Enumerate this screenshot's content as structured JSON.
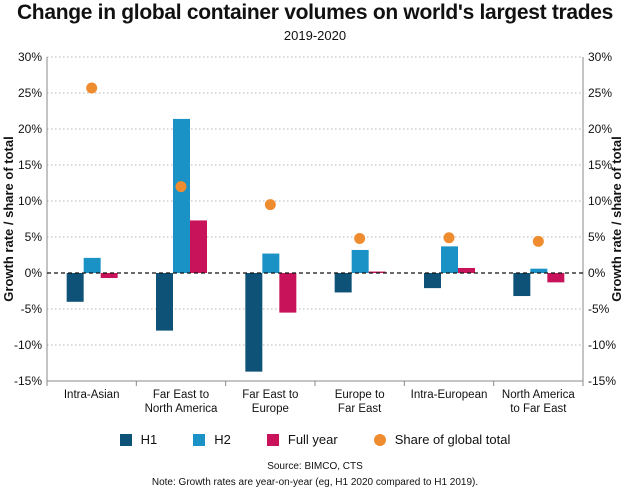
{
  "chart_data": {
    "type": "bar",
    "title": "Change in global container volumes on world's largest trades",
    "subtitle": "2019-2020",
    "ylabel": "Growth rate / share of total",
    "ylabel_right": "Growth rate / share of total",
    "ylim": [
      -15,
      30
    ],
    "yticks": [
      30,
      25,
      20,
      15,
      10,
      5,
      0,
      -5,
      -10,
      -15
    ],
    "ytick_labels": [
      "30%",
      "25%",
      "20%",
      "15%",
      "10%",
      "5%",
      "0%",
      "-5%",
      "-10%",
      "-15%"
    ],
    "grid": "horizontal dotted",
    "categories": [
      [
        "Intra-Asian"
      ],
      [
        "Far East to",
        "North America"
      ],
      [
        "Far East to",
        "Europe"
      ],
      [
        "Europe to",
        "Far East"
      ],
      [
        "Intra-European"
      ],
      [
        "North America",
        "to Far East"
      ]
    ],
    "series": [
      {
        "name": "H1",
        "type": "bar",
        "color": "#0f5278",
        "values": [
          -4.0,
          -8.0,
          -13.7,
          -2.7,
          -2.1,
          -3.2
        ]
      },
      {
        "name": "H2",
        "type": "bar",
        "color": "#1a92c6",
        "values": [
          2.1,
          21.4,
          2.7,
          3.2,
          3.7,
          0.6
        ]
      },
      {
        "name": "Full year",
        "type": "bar",
        "color": "#c8135a",
        "values": [
          -0.7,
          7.3,
          -5.5,
          0.2,
          0.7,
          -1.3
        ]
      },
      {
        "name": "Share of global total",
        "type": "scatter",
        "color": "#f08c30",
        "values": [
          25.7,
          12.0,
          9.5,
          4.8,
          4.9,
          4.4
        ]
      }
    ]
  },
  "source": "Source: BIMCO, CTS",
  "note": "Note: Growth rates are year-on-year (eg, H1 2020 compared to H1 2019)."
}
